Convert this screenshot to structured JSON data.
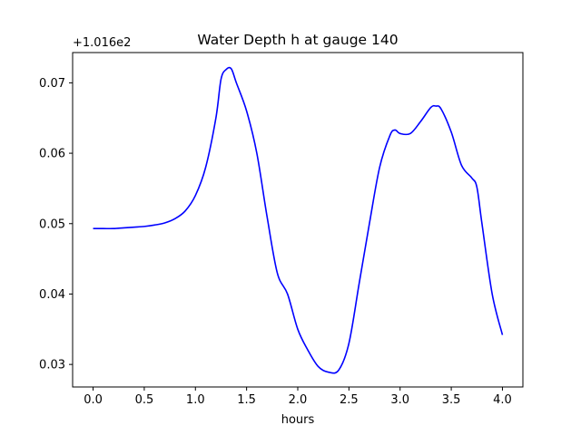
{
  "chart_data": {
    "type": "line",
    "title": "Water Depth h at gauge 140",
    "xlabel": "hours",
    "ylabel": "",
    "y_offset_label": "+1.016e2",
    "xlim": [
      -0.2,
      4.2
    ],
    "ylim": [
      0.0268,
      0.0743
    ],
    "x_ticks": [
      0.0,
      0.5,
      1.0,
      1.5,
      2.0,
      2.5,
      3.0,
      3.5,
      4.0
    ],
    "x_tick_labels": [
      "0.0",
      "0.5",
      "1.0",
      "1.5",
      "2.0",
      "2.5",
      "3.0",
      "3.5",
      "4.0"
    ],
    "y_ticks": [
      0.03,
      0.04,
      0.05,
      0.06,
      0.07
    ],
    "y_tick_labels": [
      "0.03",
      "0.04",
      "0.05",
      "0.06",
      "0.07"
    ],
    "grid": false,
    "series": [
      {
        "color": "#0000ff",
        "x": [
          0.0,
          0.1,
          0.2,
          0.3,
          0.4,
          0.5,
          0.6,
          0.7,
          0.8,
          0.9,
          1.0,
          1.1,
          1.2,
          1.25,
          1.3,
          1.35,
          1.4,
          1.5,
          1.6,
          1.7,
          1.8,
          1.9,
          2.0,
          2.1,
          2.2,
          2.3,
          2.4,
          2.5,
          2.6,
          2.7,
          2.8,
          2.9,
          2.95,
          3.0,
          3.1,
          3.2,
          3.3,
          3.35,
          3.4,
          3.5,
          3.6,
          3.7,
          3.75,
          3.8,
          3.9,
          4.0
        ],
        "y": [
          0.0493,
          0.0493,
          0.0493,
          0.0494,
          0.0495,
          0.0496,
          0.0498,
          0.0501,
          0.0507,
          0.0518,
          0.054,
          0.058,
          0.065,
          0.0705,
          0.0719,
          0.072,
          0.07,
          0.066,
          0.06,
          0.051,
          0.043,
          0.04,
          0.035,
          0.032,
          0.0297,
          0.0289,
          0.0292,
          0.033,
          0.0415,
          0.05,
          0.058,
          0.0625,
          0.0633,
          0.0628,
          0.0628,
          0.0645,
          0.0665,
          0.0667,
          0.0663,
          0.063,
          0.0583,
          0.0565,
          0.0552,
          0.05,
          0.04,
          0.0342
        ]
      }
    ]
  }
}
